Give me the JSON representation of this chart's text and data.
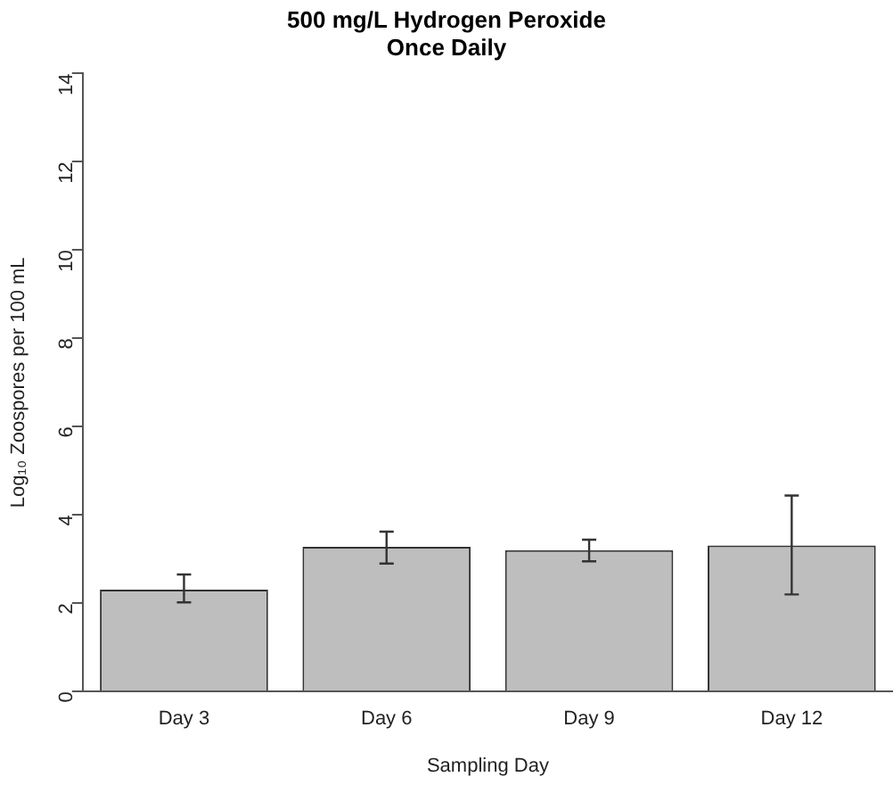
{
  "chart_data": {
    "type": "bar",
    "title": "500 mg/L Hydrogen Peroxide\nOnce Daily",
    "xlabel": "Sampling Day",
    "ylabel": "Log₁₀ Zoospores per 100 mL",
    "categories": [
      "Day 3",
      "Day 6",
      "Day 9",
      "Day 12"
    ],
    "values": [
      2.31,
      3.28,
      3.2,
      3.31
    ],
    "errors": [
      [
        2.02,
        2.65
      ],
      [
        2.9,
        3.62
      ],
      [
        2.95,
        3.44
      ],
      [
        2.2,
        4.44
      ]
    ],
    "color": "#bebebe",
    "ylim": [
      0,
      14
    ],
    "yticks": [
      0,
      2,
      4,
      6,
      8,
      10,
      12,
      14
    ],
    "grid": false,
    "legend": false
  }
}
